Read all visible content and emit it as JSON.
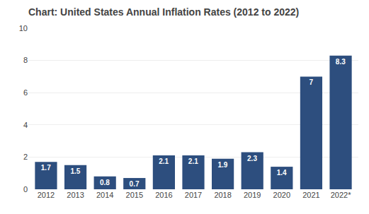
{
  "chart_data": {
    "type": "bar",
    "title": "Chart: United States Annual Inflation Rates (2012 to 2022)",
    "categories": [
      "2012",
      "2013",
      "2014",
      "2015",
      "2016",
      "2017",
      "2018",
      "2019",
      "2020",
      "2021",
      "2022*"
    ],
    "values": [
      1.7,
      1.5,
      0.8,
      0.7,
      2.1,
      2.1,
      1.9,
      2.3,
      1.4,
      7.0,
      8.3
    ],
    "color": "#2d4e7e",
    "ylim": [
      0,
      10
    ],
    "yticks": [
      0,
      2,
      4,
      6,
      8,
      10
    ],
    "grid": true,
    "data_labels": true
  }
}
